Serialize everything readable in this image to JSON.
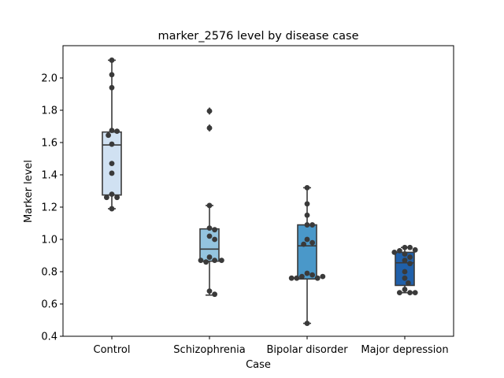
{
  "chart_data": {
    "type": "box",
    "title": "marker_2576 level by disease case",
    "xlabel": "Case",
    "ylabel": "Marker level",
    "ylim": [
      0.4,
      2.2
    ],
    "yticks": [
      "0.4",
      "0.6",
      "0.8",
      "1.0",
      "1.2",
      "1.4",
      "1.6",
      "1.8",
      "2.0"
    ],
    "grid": false,
    "legend": "none",
    "categories": [
      "Control",
      "Schizophrenia",
      "Bipolar disorder",
      "Major depression"
    ],
    "colors": [
      "#d0e1f2",
      "#94c4df",
      "#4a98c9",
      "#2060aa"
    ],
    "boxes": [
      {
        "whislo": 1.19,
        "q1": 1.275,
        "med": 1.585,
        "q3": 1.665,
        "whishi": 2.11,
        "fliers": []
      },
      {
        "whislo": 0.655,
        "q1": 0.865,
        "med": 0.94,
        "q3": 1.065,
        "whishi": 1.21,
        "fliers": [
          1.69,
          1.795
        ]
      },
      {
        "whislo": 0.48,
        "q1": 0.755,
        "med": 0.96,
        "q3": 1.09,
        "whishi": 1.32,
        "fliers": []
      },
      {
        "whislo": 0.67,
        "q1": 0.715,
        "med": 0.855,
        "q3": 0.92,
        "whishi": 0.95,
        "fliers": []
      }
    ],
    "points": [
      {
        "category": "Control",
        "values": [
          2.11,
          2.02,
          1.94,
          1.675,
          1.67,
          1.645,
          1.59,
          1.47,
          1.41,
          1.28,
          1.26,
          1.26,
          1.19
        ]
      },
      {
        "category": "Schizophrenia",
        "values": [
          1.795,
          1.69,
          1.21,
          1.07,
          1.06,
          1.02,
          1.0,
          0.89,
          0.87,
          0.86,
          0.87,
          0.87,
          0.68,
          0.66
        ]
      },
      {
        "category": "Bipolar disorder",
        "values": [
          1.32,
          1.22,
          1.15,
          1.09,
          1.09,
          1.0,
          0.98,
          0.97,
          0.79,
          0.78,
          0.77,
          0.76,
          0.76,
          0.77,
          0.76,
          0.48
        ]
      },
      {
        "category": "Major depression",
        "values": [
          0.95,
          0.95,
          0.93,
          0.935,
          0.92,
          0.91,
          0.89,
          0.87,
          0.85,
          0.8,
          0.76,
          0.73,
          0.69,
          0.67,
          0.67,
          0.67
        ]
      }
    ]
  }
}
